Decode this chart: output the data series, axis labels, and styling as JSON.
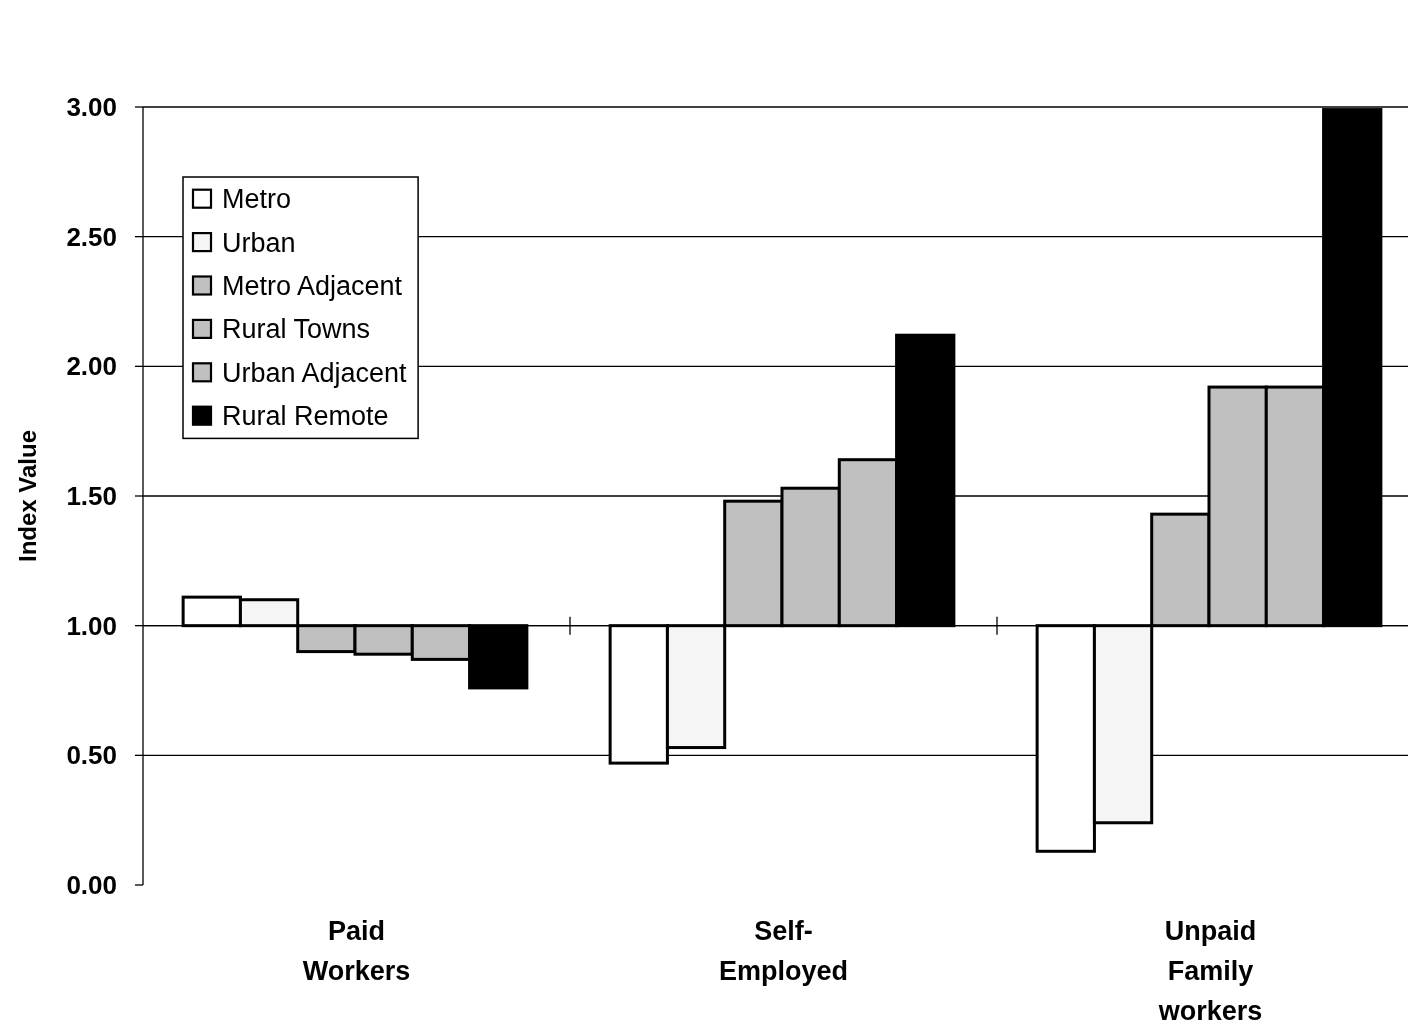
{
  "chart_data": {
    "type": "bar",
    "ylabel": "Index Value",
    "categories": [
      "Paid Workers",
      "Self-Employed",
      "Unpaid Family workers"
    ],
    "series": [
      {
        "name": "Metro",
        "color": "#ffffff",
        "base": [
          1,
          1,
          1
        ],
        "values": [
          0.11,
          -0.53,
          -0.87
        ]
      },
      {
        "name": "Urban",
        "color": "#f5f5f5",
        "base": [
          1,
          1,
          1
        ],
        "values": [
          0.1,
          -0.47,
          -0.76
        ]
      },
      {
        "name": "Metro Adjacent",
        "color": "#c0c0c0",
        "base": [
          1,
          1,
          1
        ],
        "values": [
          -0.1,
          0.48,
          0.43
        ]
      },
      {
        "name": "Rural Towns",
        "color": "#c0c0c0",
        "base": [
          1,
          1,
          1
        ],
        "values": [
          -0.11,
          0.53,
          0.92
        ]
      },
      {
        "name": "Urban Adjacent",
        "color": "#c0c0c0",
        "base": [
          1,
          1,
          1
        ],
        "values": [
          -0.13,
          0.64,
          0.92
        ]
      },
      {
        "name": "Rural Remote",
        "color": "#000000",
        "base": [
          1,
          1,
          1
        ],
        "values": [
          -0.24,
          1.12,
          1.99
        ]
      }
    ],
    "ylim": [
      0,
      3
    ],
    "yticks": [
      {
        "value": 0,
        "label": "0.00"
      },
      {
        "value": 0.5,
        "label": "0.50"
      },
      {
        "value": 1,
        "label": "1.00"
      },
      {
        "value": 1.5,
        "label": "1.50"
      },
      {
        "value": 2,
        "label": "2.00"
      },
      {
        "value": 2.5,
        "label": "2.50"
      },
      {
        "value": 3,
        "label": "3.00"
      }
    ],
    "grid": "y",
    "legend": "top left"
  }
}
